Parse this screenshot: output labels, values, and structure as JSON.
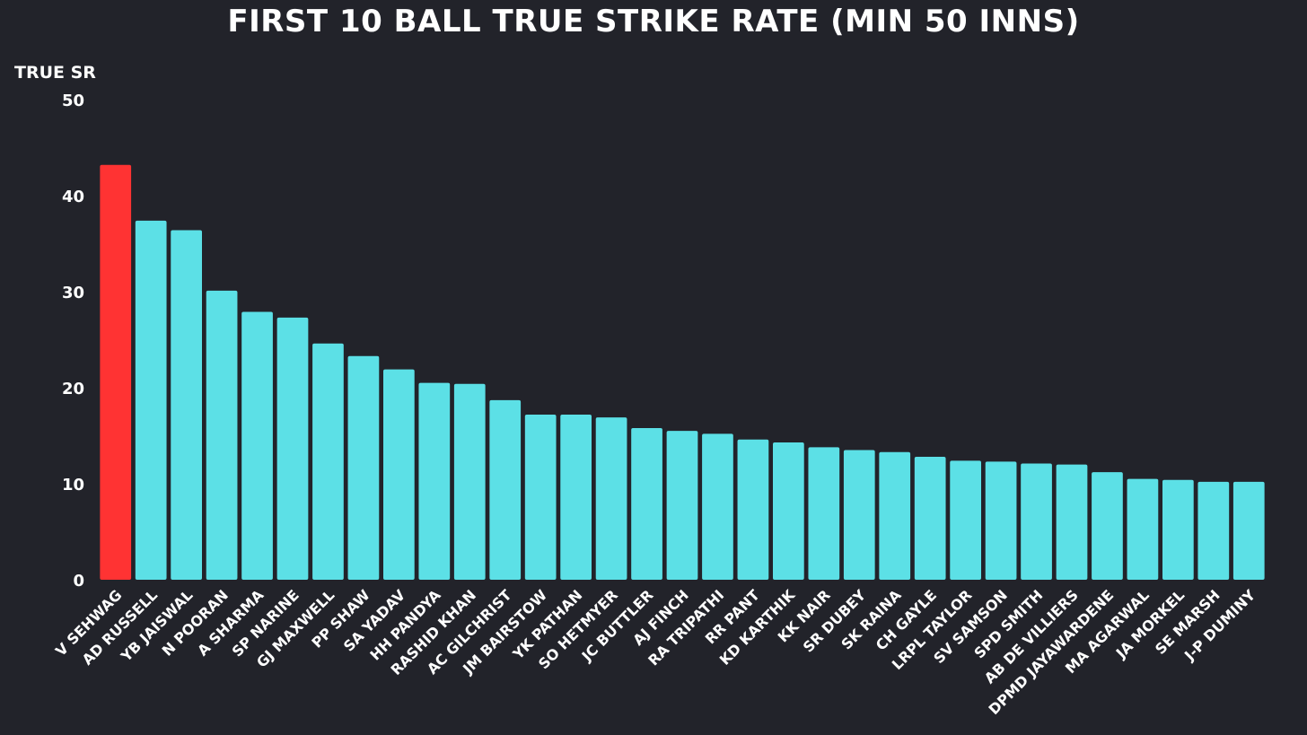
{
  "chart_data": {
    "type": "bar",
    "title": "FIRST 10 BALL TRUE STRIKE RATE (MIN 50 INNS)",
    "ylabel": "TRUE SR",
    "xlabel": "",
    "ylim": [
      0,
      50
    ],
    "yticks": [
      0,
      10,
      20,
      30,
      40,
      50
    ],
    "grid": false,
    "legend": "none",
    "categories": [
      "V SEHWAG",
      "AD RUSSELL",
      "YB JAISWAL",
      "N POORAN",
      "A SHARMA",
      "SP NARINE",
      "GJ MAXWELL",
      "PP SHAW",
      "SA YADAV",
      "HH PANDYA",
      "RASHID KHAN",
      "AC GILCHRIST",
      "JM BAIRSTOW",
      "YK PATHAN",
      "SO HETMYER",
      "JC BUTTLER",
      "AJ FINCH",
      "RA TRIPATHI",
      "RR PANT",
      "KD KARTHIK",
      "KK NAIR",
      "SR DUBEY",
      "SK RAINA",
      "CH GAYLE",
      "LRPL TAYLOR",
      "SV SAMSON",
      "SPD SMITH",
      "AB DE VILLIERS",
      "DPMD JAYAWARDENE",
      "MA AGARWAL",
      "JA MORKEL",
      "SE MARSH",
      "J-P DUMINY"
    ],
    "values": [
      43.2,
      37.4,
      36.4,
      30.1,
      27.9,
      27.3,
      24.6,
      23.3,
      21.9,
      20.5,
      20.4,
      18.7,
      17.2,
      17.2,
      16.9,
      15.8,
      15.5,
      15.2,
      14.6,
      14.3,
      13.8,
      13.5,
      13.3,
      12.8,
      12.4,
      12.3,
      12.1,
      12.0,
      11.2,
      10.5,
      10.4,
      10.2,
      10.2
    ],
    "highlight_index": 0,
    "colors": {
      "bar": "#5ce0e6",
      "highlight": "#ff3333",
      "background": "#22232a",
      "text": "#ffffff"
    }
  }
}
